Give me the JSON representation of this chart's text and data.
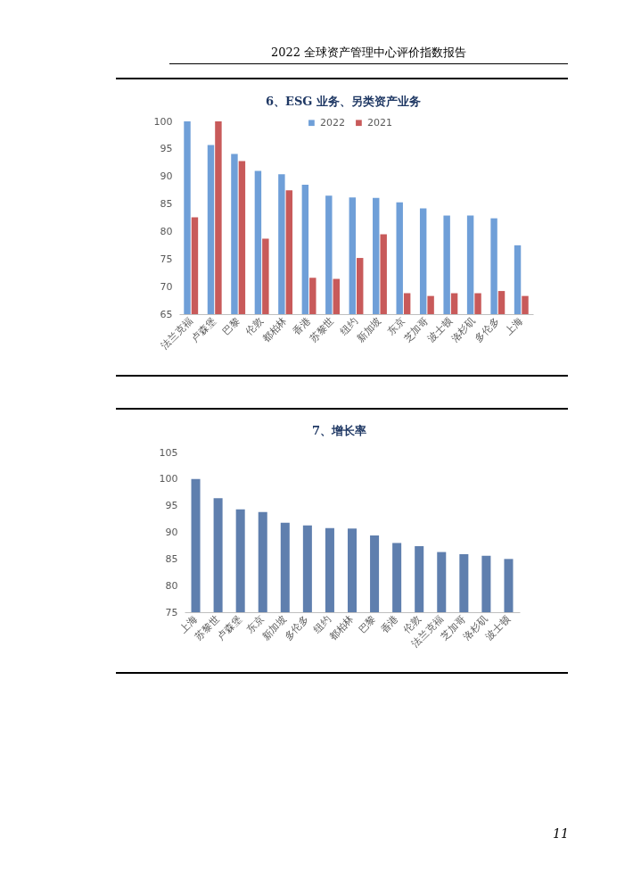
{
  "chart_data": [
    {
      "type": "bar",
      "title": "6、ESG 业务、另类资产业务",
      "annotations": [
        "2022 全球资产管理中心评价指数报告"
      ],
      "categories": [
        "法兰克福",
        "卢森堡",
        "巴黎",
        "伦敦",
        "都柏林",
        "香港",
        "苏黎世",
        "纽约",
        "新加坡",
        "东京",
        "芝加哥",
        "波士顿",
        "洛杉矶",
        "多伦多",
        "上海"
      ],
      "series": [
        {
          "name": "2022",
          "color": "#6f9fd8",
          "values": [
            100,
            95.7,
            94.1,
            91.0,
            90.4,
            88.5,
            86.5,
            86.2,
            86.1,
            85.3,
            84.2,
            82.9,
            82.9,
            82.4,
            77.5
          ]
        },
        {
          "name": "2021",
          "color": "#c85a5a",
          "values": [
            82.6,
            100,
            92.8,
            78.7,
            87.5,
            71.6,
            71.4,
            75.2,
            79.5,
            68.8,
            68.3,
            68.8,
            68.8,
            69.2,
            68.3
          ]
        }
      ],
      "ylim": [
        65,
        100
      ],
      "yticks": [
        65,
        70,
        75,
        80,
        85,
        90,
        95,
        100
      ],
      "legend": "top"
    },
    {
      "type": "bar",
      "title": "7、增长率",
      "annotations": [
        "11"
      ],
      "categories": [
        "上海",
        "苏黎世",
        "卢森堡",
        "东京",
        "新加坡",
        "多伦多",
        "纽约",
        "都柏林",
        "巴黎",
        "香港",
        "伦敦",
        "法兰克福",
        "芝加哥",
        "洛杉矶",
        "波士顿"
      ],
      "values": [
        100,
        96.4,
        94.3,
        93.8,
        91.8,
        91.3,
        90.8,
        90.7,
        89.4,
        88.0,
        87.4,
        86.3,
        85.9,
        85.6,
        85.0
      ],
      "color": "#5f7fae",
      "ylim": [
        75,
        105
      ],
      "yticks": [
        75,
        80,
        85,
        90,
        95,
        100,
        105
      ]
    }
  ]
}
